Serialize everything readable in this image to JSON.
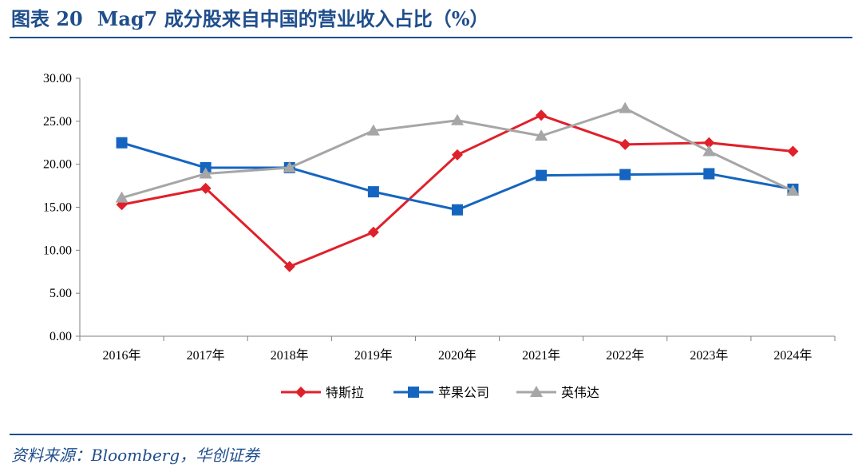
{
  "header": {
    "figure_label": "图表 20",
    "title": "Mag7 成分股来自中国的营业收入占比（%）"
  },
  "footer": {
    "source": "资料来源：Bloomberg，华创证券"
  },
  "colors": {
    "brand": "#1f4e8c",
    "tesla": "#e0202a",
    "apple": "#1565c0",
    "nvidia": "#a6a6a6"
  },
  "chart_data": {
    "type": "line",
    "title": "Mag7 成分股来自中国的营业收入占比（%）",
    "xlabel": "",
    "ylabel": "",
    "categories": [
      "2016年",
      "2017年",
      "2018年",
      "2019年",
      "2020年",
      "2021年",
      "2022年",
      "2023年",
      "2024年"
    ],
    "ylim": [
      0,
      30
    ],
    "yticks": [
      "0.00",
      "5.00",
      "10.00",
      "15.00",
      "20.00",
      "25.00",
      "30.00"
    ],
    "grid": false,
    "legend_position": "bottom",
    "series": [
      {
        "name": "特斯拉",
        "marker": "diamond",
        "color": "#e0202a",
        "values": [
          15.3,
          17.2,
          8.1,
          12.1,
          21.1,
          25.7,
          22.3,
          22.5,
          21.5
        ]
      },
      {
        "name": "苹果公司",
        "marker": "square",
        "color": "#1565c0",
        "values": [
          22.5,
          19.6,
          19.6,
          16.8,
          14.7,
          18.7,
          18.8,
          18.9,
          17.1
        ]
      },
      {
        "name": "英伟达",
        "marker": "triangle",
        "color": "#a6a6a6",
        "values": [
          16.1,
          18.9,
          19.6,
          23.9,
          25.1,
          23.3,
          26.5,
          21.5,
          16.9
        ]
      }
    ]
  }
}
